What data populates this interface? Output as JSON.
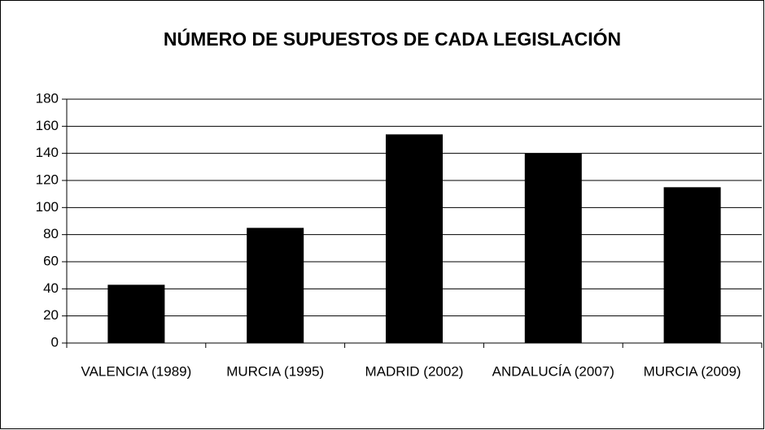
{
  "chart_data": {
    "type": "bar",
    "title": "NÚMERO DE SUPUESTOS DE CADA LEGISLACIÓN",
    "categories": [
      "VALENCIA (1989)",
      "MURCIA (1995)",
      "MADRID (2002)",
      "ANDALUCÍA (2007)",
      "MURCIA (2009)"
    ],
    "values": [
      43,
      85,
      154,
      140,
      115
    ],
    "color": "#000000",
    "ylim": [
      0,
      180
    ],
    "yticks": [
      0,
      20,
      40,
      60,
      80,
      100,
      120,
      140,
      160,
      180
    ],
    "grid": true
  }
}
